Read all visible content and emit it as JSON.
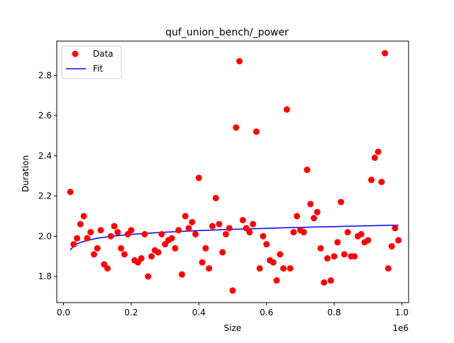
{
  "chart_data": {
    "type": "scatter",
    "title": "quf_union_bench/_power",
    "xlabel": "Size",
    "ylabel": "Duration",
    "x_offset_text": "1e6",
    "xlim": [
      -0.02,
      1.02
    ],
    "ylim": [
      1.67,
      2.97
    ],
    "x_ticks": [
      0.0,
      0.2,
      0.4,
      0.6,
      0.8,
      1.0
    ],
    "x_tick_labels": [
      "0.0",
      "0.2",
      "0.4",
      "0.6",
      "0.8",
      "1.0"
    ],
    "y_ticks": [
      1.8,
      2.0,
      2.2,
      2.4,
      2.6,
      2.8
    ],
    "y_tick_labels": [
      "1.8",
      "2.0",
      "2.2",
      "2.4",
      "2.6",
      "2.8"
    ],
    "grid": false,
    "legend_placement": "top-left",
    "colors": {
      "data": "#ff0000",
      "fit": "#0000ff",
      "axes": "#000000"
    },
    "series": [
      {
        "name": "Data",
        "kind": "scatter",
        "points": [
          [
            0.02,
            2.22
          ],
          [
            0.03,
            1.96
          ],
          [
            0.04,
            1.99
          ],
          [
            0.05,
            2.06
          ],
          [
            0.06,
            2.1
          ],
          [
            0.07,
            1.99
          ],
          [
            0.08,
            2.02
          ],
          [
            0.09,
            1.91
          ],
          [
            0.1,
            1.94
          ],
          [
            0.11,
            2.03
          ],
          [
            0.12,
            1.86
          ],
          [
            0.13,
            1.84
          ],
          [
            0.14,
            2.0
          ],
          [
            0.15,
            2.05
          ],
          [
            0.16,
            2.02
          ],
          [
            0.17,
            1.94
          ],
          [
            0.18,
            1.91
          ],
          [
            0.19,
            2.01
          ],
          [
            0.2,
            2.03
          ],
          [
            0.21,
            1.88
          ],
          [
            0.22,
            1.87
          ],
          [
            0.23,
            1.89
          ],
          [
            0.24,
            2.01
          ],
          [
            0.25,
            1.8
          ],
          [
            0.26,
            1.9
          ],
          [
            0.27,
            1.93
          ],
          [
            0.28,
            1.92
          ],
          [
            0.29,
            2.01
          ],
          [
            0.3,
            1.96
          ],
          [
            0.31,
            1.98
          ],
          [
            0.32,
            1.99
          ],
          [
            0.33,
            1.94
          ],
          [
            0.34,
            2.03
          ],
          [
            0.35,
            1.81
          ],
          [
            0.36,
            2.1
          ],
          [
            0.37,
            2.04
          ],
          [
            0.38,
            2.07
          ],
          [
            0.39,
            2.01
          ],
          [
            0.4,
            2.29
          ],
          [
            0.41,
            1.87
          ],
          [
            0.42,
            1.94
          ],
          [
            0.43,
            1.84
          ],
          [
            0.44,
            2.05
          ],
          [
            0.45,
            2.19
          ],
          [
            0.46,
            2.06
          ],
          [
            0.47,
            1.92
          ],
          [
            0.48,
            2.01
          ],
          [
            0.49,
            2.04
          ],
          [
            0.5,
            1.73
          ],
          [
            0.51,
            2.54
          ],
          [
            0.52,
            2.87
          ],
          [
            0.53,
            2.08
          ],
          [
            0.54,
            2.04
          ],
          [
            0.55,
            2.02
          ],
          [
            0.56,
            2.06
          ],
          [
            0.57,
            2.52
          ],
          [
            0.58,
            1.84
          ],
          [
            0.59,
            2.0
          ],
          [
            0.6,
            1.96
          ],
          [
            0.61,
            1.88
          ],
          [
            0.62,
            1.87
          ],
          [
            0.63,
            1.78
          ],
          [
            0.64,
            1.91
          ],
          [
            0.65,
            1.84
          ],
          [
            0.66,
            2.63
          ],
          [
            0.67,
            1.84
          ],
          [
            0.68,
            2.02
          ],
          [
            0.69,
            2.1
          ],
          [
            0.7,
            2.03
          ],
          [
            0.71,
            2.02
          ],
          [
            0.72,
            2.33
          ],
          [
            0.73,
            2.16
          ],
          [
            0.74,
            2.09
          ],
          [
            0.75,
            2.12
          ],
          [
            0.76,
            1.94
          ],
          [
            0.77,
            1.77
          ],
          [
            0.78,
            1.89
          ],
          [
            0.79,
            1.78
          ],
          [
            0.8,
            1.9
          ],
          [
            0.81,
            1.97
          ],
          [
            0.82,
            2.17
          ],
          [
            0.83,
            1.91
          ],
          [
            0.84,
            2.02
          ],
          [
            0.85,
            1.9
          ],
          [
            0.86,
            1.9
          ],
          [
            0.87,
            2.0
          ],
          [
            0.88,
            2.01
          ],
          [
            0.89,
            1.97
          ],
          [
            0.9,
            1.98
          ],
          [
            0.91,
            2.28
          ],
          [
            0.92,
            2.39
          ],
          [
            0.93,
            2.42
          ],
          [
            0.94,
            2.27
          ],
          [
            0.95,
            2.91
          ],
          [
            0.96,
            1.84
          ],
          [
            0.97,
            1.95
          ],
          [
            0.98,
            2.04
          ],
          [
            0.99,
            1.98
          ]
        ]
      },
      {
        "name": "Fit",
        "kind": "line",
        "points": [
          [
            0.02,
            1.932
          ],
          [
            0.03,
            1.95
          ],
          [
            0.04,
            1.961
          ],
          [
            0.05,
            1.969
          ],
          [
            0.07,
            1.979
          ],
          [
            0.1,
            1.99
          ],
          [
            0.15,
            2.001
          ],
          [
            0.2,
            2.009
          ],
          [
            0.25,
            2.015
          ],
          [
            0.3,
            2.02
          ],
          [
            0.35,
            2.024
          ],
          [
            0.4,
            2.028
          ],
          [
            0.45,
            2.031
          ],
          [
            0.5,
            2.034
          ],
          [
            0.55,
            2.037
          ],
          [
            0.6,
            2.039
          ],
          [
            0.65,
            2.042
          ],
          [
            0.7,
            2.044
          ],
          [
            0.75,
            2.046
          ],
          [
            0.8,
            2.048
          ],
          [
            0.85,
            2.05
          ],
          [
            0.9,
            2.052
          ],
          [
            0.95,
            2.054
          ],
          [
            0.99,
            2.055
          ]
        ]
      }
    ]
  }
}
